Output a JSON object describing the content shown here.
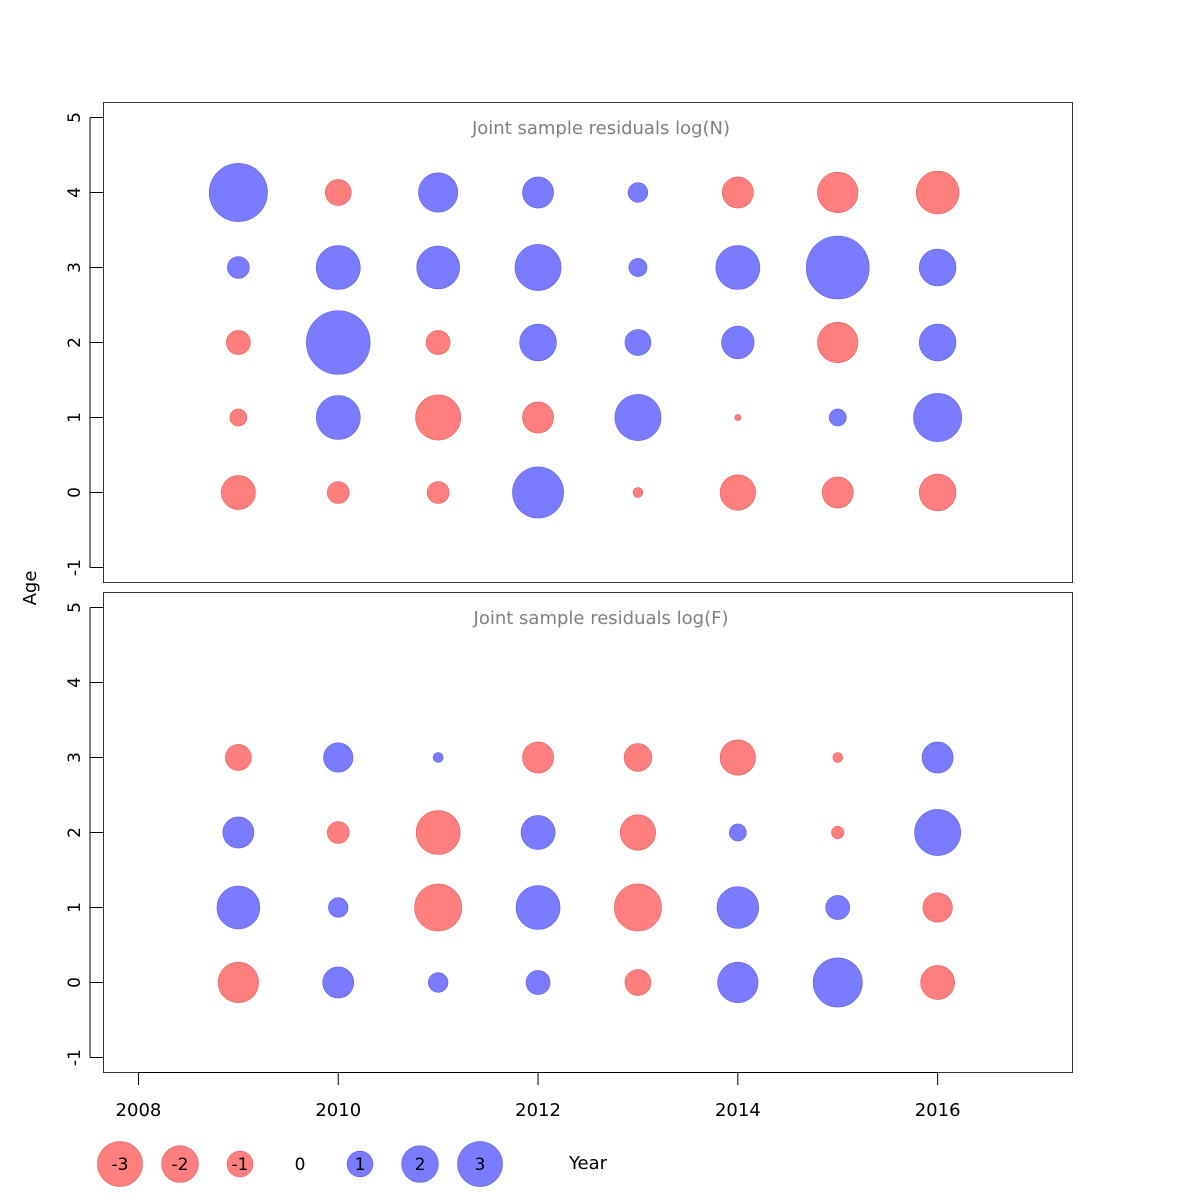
{
  "chart_data": {
    "type": "bubble",
    "xlabel": "Year",
    "ylabel": "Age",
    "x_ticks": [
      2008,
      2010,
      2012,
      2014,
      2016
    ],
    "xlim": [
      2007.65,
      2017.35
    ],
    "y_ticks": [
      -1,
      0,
      1,
      2,
      3,
      4,
      5
    ],
    "ylim": [
      -1.2,
      5.2
    ],
    "colors": {
      "positive": "#7b7bff",
      "negative": "#ff7f7f"
    },
    "panels": [
      {
        "title": "Joint sample residuals log(N)",
        "years": [
          2009,
          2010,
          2011,
          2012,
          2013,
          2014,
          2015,
          2016
        ],
        "ages": [
          0,
          1,
          2,
          3,
          4
        ],
        "residuals": [
          [
            -0.6,
            -0.25,
            -0.25,
            1.35,
            -0.05,
            -0.65,
            -0.5,
            -0.7
          ],
          [
            -0.15,
            1.0,
            -1.05,
            -0.5,
            1.1,
            -0.02,
            0.15,
            1.2
          ],
          [
            -0.3,
            2.1,
            -0.3,
            0.7,
            0.35,
            0.55,
            -0.85,
            0.7
          ],
          [
            0.25,
            1.0,
            0.95,
            1.1,
            0.17,
            1.0,
            2.05,
            0.7
          ],
          [
            1.75,
            -0.35,
            0.8,
            0.5,
            0.2,
            -0.5,
            -0.85,
            -0.95
          ]
        ]
      },
      {
        "title": "Joint sample residuals log(F)",
        "years": [
          2009,
          2010,
          2011,
          2012,
          2013,
          2014,
          2015,
          2016
        ],
        "ages": [
          0,
          1,
          2,
          3
        ],
        "residuals": [
          [
            -0.85,
            0.5,
            0.2,
            0.3,
            -0.35,
            0.85,
            1.25,
            -0.6
          ],
          [
            0.95,
            0.2,
            -1.15,
            1.0,
            -1.15,
            0.9,
            0.3,
            -0.45
          ],
          [
            0.5,
            -0.25,
            -1.0,
            0.6,
            -0.65,
            0.15,
            -0.08,
            1.1
          ],
          [
            -0.35,
            0.45,
            0.05,
            -0.5,
            -0.4,
            -0.65,
            -0.05,
            0.5
          ]
        ]
      }
    ],
    "legend": {
      "values": [
        -3,
        -2,
        -1,
        0,
        1,
        2,
        3
      ],
      "labels": [
        "-3",
        "-2",
        "-1",
        "0",
        "1",
        "2",
        "3"
      ]
    }
  }
}
